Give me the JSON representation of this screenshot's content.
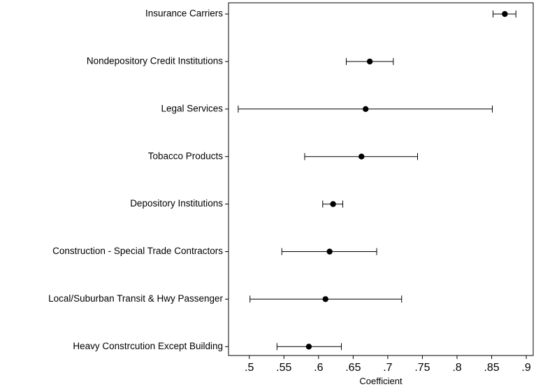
{
  "chart_data": {
    "type": "scatter",
    "subtype": "coefficient-plot-with-confidence-intervals",
    "orientation": "horizontal",
    "title": "",
    "xlabel": "Coefficient",
    "ylabel": "",
    "xlim": [
      0.47,
      0.91
    ],
    "xticks": [
      ".5",
      ".55",
      ".6",
      ".65",
      ".7",
      ".75",
      ".8",
      ".85",
      ".9"
    ],
    "grid": false,
    "legend": "none",
    "marker_color": "#000000",
    "categories": [
      "Insurance Carriers",
      "Nondepository Credit Institutions",
      "Legal Services",
      "Tobacco Products",
      "Depository Institutions",
      "Construction - Special Trade Contractors",
      "Local/Suburban Transit & Hwy Passenger",
      "Heavy Constrcution Except Building"
    ],
    "series": [
      {
        "estimates": [
          0.869,
          0.674,
          0.668,
          0.662,
          0.621,
          0.616,
          0.61,
          0.586
        ],
        "ci_lower": [
          0.852,
          0.64,
          0.484,
          0.58,
          0.606,
          0.547,
          0.501,
          0.54
        ],
        "ci_upper": [
          0.885,
          0.708,
          0.851,
          0.743,
          0.635,
          0.684,
          0.72,
          0.633
        ]
      }
    ]
  }
}
